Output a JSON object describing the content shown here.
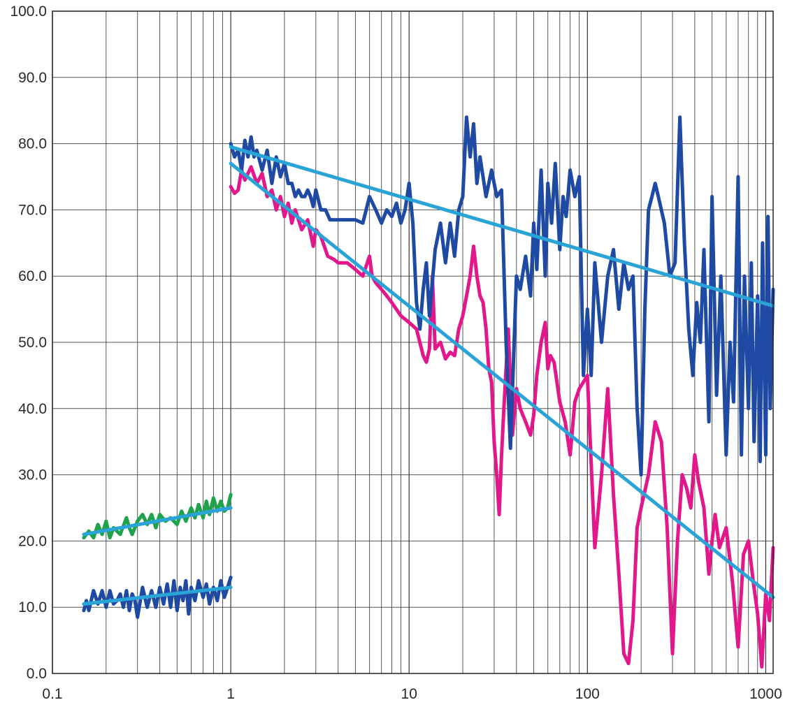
{
  "chart_data": {
    "type": "line",
    "title": "",
    "xlabel": "",
    "ylabel": "",
    "x_scale": "log",
    "xlim": [
      0.1,
      1100
    ],
    "ylim": [
      0,
      100
    ],
    "grid": true,
    "x_ticks": [
      {
        "value": 0.1,
        "label": "0.1"
      },
      {
        "value": 1,
        "label": "1"
      },
      {
        "value": 10,
        "label": "10"
      },
      {
        "value": 100,
        "label": "100"
      },
      {
        "value": 1000,
        "label": "1000"
      }
    ],
    "y_ticks": [
      {
        "value": 0,
        "label": "0.0"
      },
      {
        "value": 10,
        "label": "10.0"
      },
      {
        "value": 20,
        "label": "20.0"
      },
      {
        "value": 30,
        "label": "30.0"
      },
      {
        "value": 40,
        "label": "40.0"
      },
      {
        "value": 50,
        "label": "50.0"
      },
      {
        "value": 60,
        "label": "60.0"
      },
      {
        "value": 70,
        "label": "70.0"
      },
      {
        "value": 80,
        "label": "80.0"
      },
      {
        "value": 90,
        "label": "90.0"
      },
      {
        "value": 100,
        "label": "100.0"
      }
    ],
    "series": [
      {
        "color": "#e3178c",
        "width": 5,
        "x": [
          1,
          1.05,
          1.1,
          1.15,
          1.2,
          1.3,
          1.4,
          1.5,
          1.6,
          1.7,
          1.8,
          1.9,
          2,
          2.1,
          2.2,
          2.3,
          2.5,
          2.7,
          2.9,
          3,
          3.2,
          3.5,
          3.8,
          4,
          4.5,
          5,
          5.5,
          6,
          6.2,
          6.5,
          7,
          7.5,
          8,
          9,
          10,
          11,
          12,
          12.5,
          13,
          13.5,
          14,
          15,
          16,
          17,
          18,
          19,
          20,
          21,
          22,
          23,
          24,
          25,
          26,
          27,
          28,
          29,
          30,
          31,
          32,
          33,
          34,
          36,
          38,
          40,
          42,
          45,
          48,
          50,
          52,
          55,
          58,
          60,
          62,
          65,
          70,
          75,
          80,
          85,
          90,
          95,
          100,
          110,
          120,
          130,
          140,
          150,
          160,
          170,
          180,
          190,
          200,
          220,
          240,
          260,
          280,
          300,
          320,
          340,
          360,
          380,
          400,
          420,
          450,
          480,
          500,
          520,
          550,
          600,
          650,
          700,
          750,
          800,
          850,
          900,
          950,
          1000,
          1050,
          1100
        ],
        "y": [
          73.5,
          72.5,
          73,
          76,
          74.5,
          76.5,
          74,
          75.5,
          72,
          73,
          70,
          72,
          69,
          71,
          68,
          70,
          67,
          68.5,
          64.5,
          67,
          66,
          63,
          62.5,
          62,
          62,
          61,
          60,
          63,
          60,
          59,
          58,
          57,
          56,
          54,
          53,
          52,
          48,
          47,
          49,
          60,
          49,
          50,
          47.5,
          48.5,
          48,
          52,
          54,
          57,
          60,
          64.5,
          60,
          57,
          56,
          52,
          46,
          44,
          35,
          30,
          24,
          33,
          40,
          52,
          36,
          43,
          40,
          38,
          36,
          39,
          45,
          50,
          53,
          46,
          48,
          47,
          41,
          38,
          33,
          41,
          43,
          44,
          45,
          19,
          30,
          43,
          27,
          15,
          3,
          1.5,
          8,
          22,
          25,
          30,
          38,
          35,
          22,
          3,
          20,
          30,
          28,
          25,
          33,
          29,
          25,
          15,
          20,
          24,
          19,
          22,
          14,
          4,
          18,
          20,
          14,
          9,
          1,
          12,
          8,
          19
        ]
      },
      {
        "color": "#1e4aa3",
        "width": 5,
        "x": [
          1,
          1.05,
          1.1,
          1.15,
          1.2,
          1.25,
          1.3,
          1.35,
          1.4,
          1.5,
          1.6,
          1.7,
          1.8,
          1.9,
          2,
          2.1,
          2.2,
          2.3,
          2.4,
          2.5,
          2.6,
          2.7,
          2.8,
          2.9,
          3,
          3.2,
          3.4,
          3.6,
          3.8,
          4,
          4.5,
          5,
          5.5,
          6,
          6.5,
          7,
          7.5,
          8,
          8.5,
          9,
          9.5,
          10,
          10.5,
          11,
          11.5,
          12,
          12.5,
          13,
          14,
          15,
          16,
          17,
          18,
          19,
          20,
          21,
          22,
          23,
          24,
          25,
          27,
          29,
          31,
          33,
          35,
          37,
          40,
          42,
          45,
          48,
          50,
          52,
          55,
          58,
          60,
          63,
          66,
          70,
          73,
          76,
          80,
          85,
          90,
          95,
          100,
          105,
          110,
          120,
          130,
          140,
          150,
          160,
          170,
          180,
          190,
          200,
          210,
          220,
          230,
          240,
          250,
          270,
          290,
          310,
          330,
          350,
          370,
          390,
          410,
          430,
          450,
          480,
          500,
          530,
          560,
          600,
          630,
          660,
          700,
          730,
          760,
          800,
          830,
          860,
          900,
          930,
          960,
          1000,
          1030,
          1060,
          1100
        ],
        "y": [
          80,
          78,
          79,
          76,
          80.5,
          78,
          81,
          78,
          79,
          76,
          79,
          74,
          78,
          75,
          77,
          74,
          74,
          72,
          73,
          72,
          72,
          73,
          72,
          70.5,
          73,
          70,
          70,
          68.5,
          68.5,
          68.5,
          68.5,
          68.5,
          68,
          72,
          70,
          68,
          70,
          69,
          71,
          68,
          70,
          74,
          68,
          56,
          52,
          58,
          62,
          54,
          64,
          68,
          62,
          68,
          63,
          70,
          72,
          84,
          78,
          83,
          74,
          78,
          72,
          76,
          72,
          73,
          50,
          34,
          60,
          58,
          63,
          57,
          68,
          61,
          76,
          60,
          74,
          68,
          77,
          64,
          72,
          69,
          76,
          72,
          75,
          45,
          55,
          45,
          62,
          50,
          60,
          64,
          55,
          62,
          58,
          60,
          40,
          30,
          55,
          70,
          72,
          74,
          72,
          68,
          60,
          62,
          84,
          65,
          52,
          45,
          56,
          50,
          64,
          38,
          72,
          42,
          60,
          33,
          50,
          41,
          75,
          33,
          60,
          40,
          62,
          35,
          57,
          32,
          65,
          33,
          69,
          40,
          58
        ]
      },
      {
        "color": "#1fa34a",
        "width": 5,
        "x": [
          0.15,
          0.16,
          0.17,
          0.18,
          0.19,
          0.2,
          0.21,
          0.22,
          0.24,
          0.26,
          0.27,
          0.28,
          0.3,
          0.32,
          0.34,
          0.36,
          0.38,
          0.4,
          0.43,
          0.46,
          0.5,
          0.53,
          0.56,
          0.6,
          0.63,
          0.66,
          0.7,
          0.73,
          0.76,
          0.8,
          0.84,
          0.88,
          0.92,
          0.96,
          1
        ],
        "y": [
          20.5,
          21.5,
          20.5,
          22.5,
          21,
          23,
          20.5,
          22,
          21,
          23.5,
          22,
          21,
          23,
          24,
          22.5,
          24,
          22,
          24,
          23,
          23.5,
          22.5,
          24.5,
          23,
          25,
          23.5,
          25.5,
          23.5,
          26,
          24,
          26.5,
          24.5,
          26,
          24.5,
          25,
          27
        ]
      },
      {
        "color": "#1e4aa3",
        "width": 5,
        "x": [
          0.15,
          0.155,
          0.16,
          0.17,
          0.18,
          0.19,
          0.2,
          0.21,
          0.22,
          0.23,
          0.24,
          0.25,
          0.26,
          0.27,
          0.28,
          0.29,
          0.3,
          0.32,
          0.34,
          0.36,
          0.38,
          0.4,
          0.42,
          0.44,
          0.46,
          0.48,
          0.5,
          0.52,
          0.54,
          0.56,
          0.58,
          0.6,
          0.63,
          0.66,
          0.7,
          0.73,
          0.76,
          0.8,
          0.84,
          0.88,
          0.92,
          0.96,
          1
        ],
        "y": [
          9.5,
          11,
          9.5,
          12.5,
          10.5,
          12.5,
          10,
          12.5,
          10.5,
          11,
          12,
          10,
          12.5,
          9.5,
          12,
          11,
          8.5,
          13,
          10,
          12.5,
          10,
          13,
          10.5,
          13.5,
          10,
          14,
          9.5,
          13,
          11,
          14,
          9,
          13,
          11,
          14,
          11.5,
          13.5,
          10.5,
          13,
          11,
          14,
          11.5,
          13,
          14.5
        ]
      },
      {
        "color": "#2aa3d6",
        "width": 5,
        "x": [
          1,
          1100
        ],
        "y": [
          79.5,
          55.5
        ]
      },
      {
        "color": "#2aa3d6",
        "width": 5,
        "x": [
          1,
          1100
        ],
        "y": [
          77,
          11.5
        ]
      },
      {
        "color": "#2aa3d6",
        "width": 5,
        "x": [
          0.15,
          1
        ],
        "y": [
          21,
          25
        ]
      },
      {
        "color": "#2aa3d6",
        "width": 5,
        "x": [
          0.15,
          1
        ],
        "y": [
          10.5,
          13
        ]
      }
    ]
  }
}
